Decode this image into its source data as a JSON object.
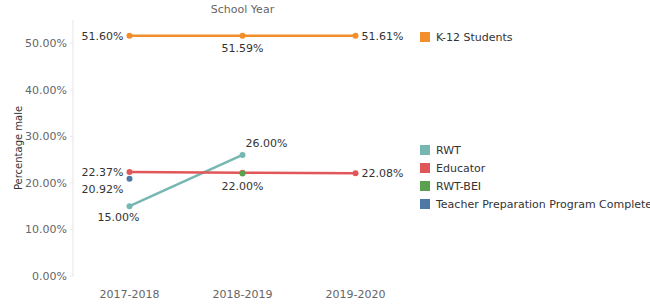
{
  "chart_data": {
    "type": "line",
    "title": "School Year",
    "y_label": "Percentage male",
    "categories": [
      "2017-2018",
      "2018-2019",
      "2019-2020"
    ],
    "ylim": [
      0,
      55
    ],
    "yticks": [
      {
        "value": 0,
        "label": "0.00%"
      },
      {
        "value": 10,
        "label": "10.00%"
      },
      {
        "value": 20,
        "label": "20.00%"
      },
      {
        "value": 30,
        "label": "30.00%"
      },
      {
        "value": 40,
        "label": "40.00%"
      },
      {
        "value": 50,
        "label": "50.00%"
      }
    ],
    "grid": false,
    "legend": "right",
    "data_labels": true,
    "marker": "circle",
    "series": [
      {
        "name": "K-12 Students",
        "color": "#f28e2b",
        "values": [
          51.6,
          51.59,
          51.61
        ],
        "value_labels": [
          "51.60%",
          "51.59%",
          "51.61%"
        ]
      },
      {
        "name": "RWT",
        "color": "#76b7b2",
        "values": [
          15,
          26,
          null
        ],
        "value_labels": [
          "15.00%",
          "26.00%",
          null
        ]
      },
      {
        "name": "Educator",
        "color": "#e15759",
        "values": [
          22.37,
          22.2,
          22.08
        ],
        "value_labels": [
          "22.37%",
          null,
          "22.08%"
        ]
      },
      {
        "name": "RWT-BEI",
        "color": "#59a14f",
        "values": [
          null,
          22,
          null
        ],
        "value_labels": [
          null,
          "22.00%",
          null
        ]
      },
      {
        "name": "Teacher Preparation Program Completer",
        "color": "#4e79a7",
        "values": [
          20.92,
          null,
          null
        ],
        "value_labels": [
          "20.92%",
          null,
          null
        ]
      }
    ]
  }
}
